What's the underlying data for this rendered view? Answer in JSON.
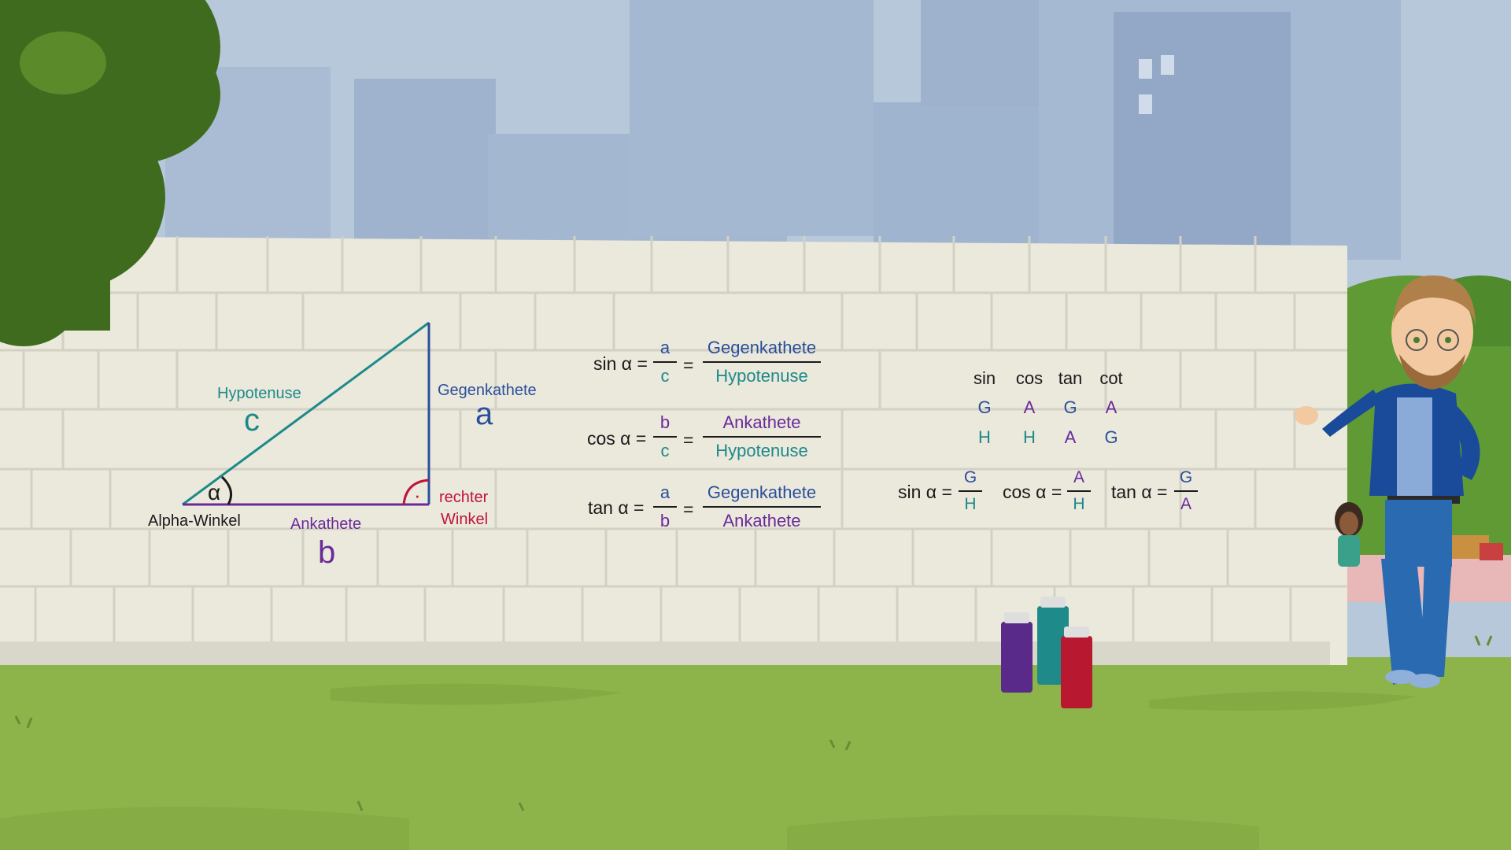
{
  "colors": {
    "sky": "#b6c8da",
    "wall": "#ebe8dc",
    "grass": "#8db44a",
    "teal": "#1c8a8a",
    "blue": "#2a4f9c",
    "purple": "#6a2a9a",
    "red": "#c0143a",
    "dark": "#1a1a1a"
  },
  "triangle": {
    "hypotenuse_label": "Hypotenuse",
    "hypotenuse_letter": "c",
    "opposite_label": "Gegenkathete",
    "opposite_letter": "a",
    "adjacent_label": "Ankathete",
    "adjacent_letter": "b",
    "alpha_symbol": "α",
    "alpha_label": "Alpha-Winkel",
    "right_angle_line1": "rechter",
    "right_angle_line2": "Winkel",
    "right_angle_dot": "·"
  },
  "formulas": [
    {
      "name": "sin α =",
      "short_num": "a",
      "short_den": "c",
      "long_num": "Gegenkathete",
      "long_den": "Hypotenuse"
    },
    {
      "name": "cos α =",
      "short_num": "b",
      "short_den": "c",
      "long_num": "Ankathete",
      "long_den": "Hypotenuse"
    },
    {
      "name": "tan α =",
      "short_num": "a",
      "short_den": "b",
      "long_num": "Gegenkathete",
      "long_den": "Ankathete"
    }
  ],
  "equals": "=",
  "mnemonic_table": {
    "headers": [
      "sin",
      "cos",
      "tan",
      "cot"
    ],
    "row1": [
      "G",
      "A",
      "G",
      "A"
    ],
    "row2": [
      "H",
      "H",
      "A",
      "G"
    ]
  },
  "short_formulas": [
    {
      "name": "sin α =",
      "num": "G",
      "den": "H"
    },
    {
      "name": "cos α =",
      "num": "A",
      "den": "H"
    },
    {
      "name": "tan α =",
      "num": "G",
      "den": "A"
    }
  ]
}
